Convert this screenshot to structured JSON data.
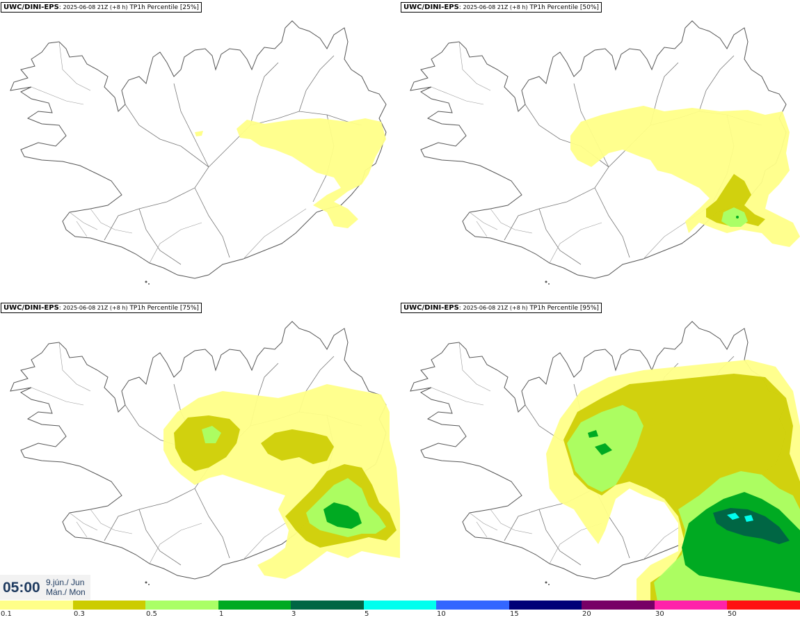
{
  "panels": [
    {
      "model": "UWC/DINI-EPS",
      "run": "2025-06-08 21Z (+8 h)",
      "param": "TP1h Percentile [25%]"
    },
    {
      "model": "UWC/DINI-EPS",
      "run": "2025-06-08 21Z (+8 h)",
      "param": "TP1h Percentile [50%]"
    },
    {
      "model": "UWC/DINI-EPS",
      "run": "2025-06-08 21Z (+8 h)",
      "param": "TP1h Percentile [75%]"
    },
    {
      "model": "UWC/DINI-EPS",
      "run": "2025-06-08 21Z (+8 h)",
      "param": "TP1h Percentile [95%]"
    }
  ],
  "time": {
    "hour": "05:00",
    "date_line1": "9.jún./ Jun",
    "date_line2": "Mán./ Mon"
  },
  "legend": {
    "labels": [
      "0.1",
      "0.3",
      "0.5",
      "1",
      "3",
      "5",
      "10",
      "15",
      "20",
      "30",
      "50"
    ],
    "colors": [
      "#ffff88",
      "#cccc00",
      "#aaff66",
      "#00aa22",
      "#006644",
      "#00ffee",
      "#3366ff",
      "#000077",
      "#770066",
      "#ff22aa",
      "#ff1111"
    ]
  }
}
